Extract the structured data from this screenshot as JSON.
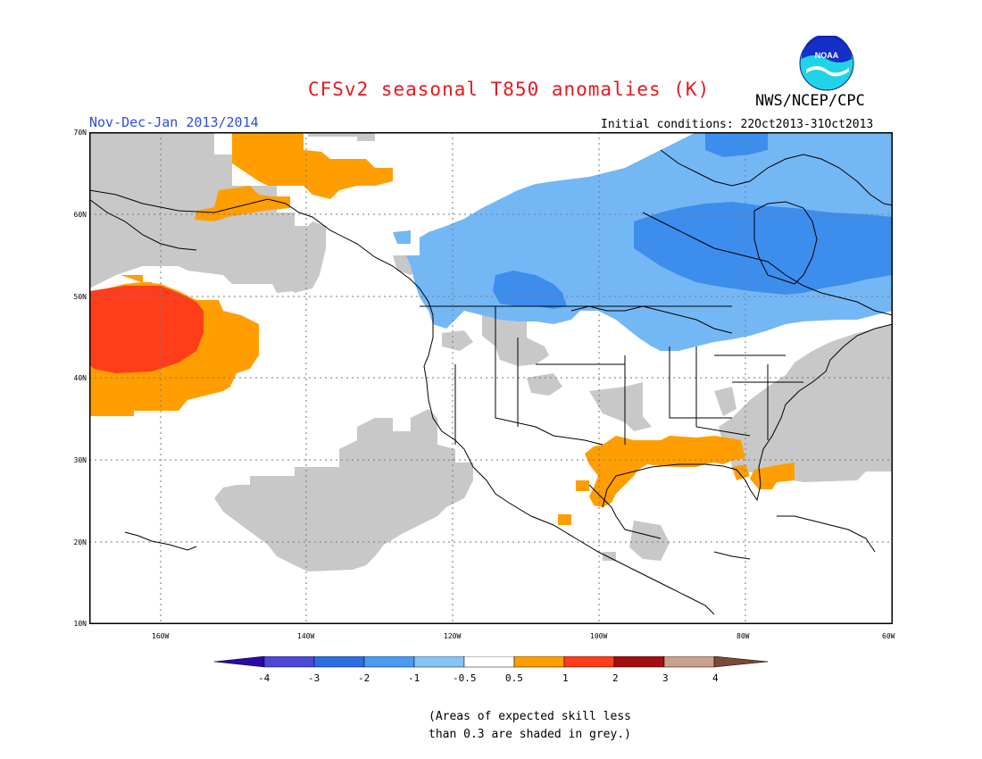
{
  "header": {
    "title": "CFSv2 seasonal T850 anomalies (K)",
    "agency": "NWS/NCEP/CPC",
    "logo_text": "NOAA",
    "period": "Nov-Dec-Jan 2013/2014",
    "initial_conditions": "Initial conditions: 22Oct2013-31Oct2013"
  },
  "colors": {
    "title": "#e8171f",
    "period": "#2e4fdc",
    "grey_skill": "#c8c8c8",
    "light_blue": "#74b7f5",
    "mid_blue": "#3d8ded",
    "orange": "#ff9e00",
    "red_orange": "#ff3d1a"
  },
  "map": {
    "lat_labels": [
      "70N",
      "60N",
      "50N",
      "40N",
      "30N",
      "20N",
      "10N"
    ],
    "lon_labels": [
      "160W",
      "140W",
      "120W",
      "100W",
      "80W",
      "60W"
    ]
  },
  "colorbar": {
    "labels": [
      "-4",
      "-3",
      "-2",
      "-1",
      "-0.5",
      "0.5",
      "1",
      "2",
      "3",
      "4"
    ],
    "colors": [
      "#2a0aa6",
      "#4e47d9",
      "#2e6de0",
      "#4a9af2",
      "#89c3f5",
      "#ffffff",
      "#ff9e00",
      "#ff3d1a",
      "#a50f0f",
      "#c8a08c",
      "#7a4a34"
    ]
  },
  "footnote": {
    "line1": "(Areas of expected skill less",
    "line2": "than 0.3 are shaded in grey.)"
  }
}
